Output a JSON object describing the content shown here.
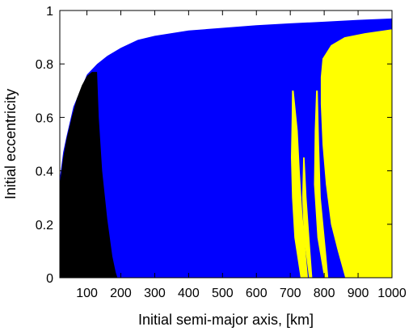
{
  "chart_data": {
    "type": "heatmap",
    "title": "",
    "xlabel": "Initial semi-major axis, [km]",
    "ylabel": "Initial eccentricity",
    "xlim": [
      20,
      1000
    ],
    "ylim": [
      0,
      1
    ],
    "x_ticks": [
      100,
      200,
      300,
      400,
      500,
      600,
      700,
      800,
      900,
      1000
    ],
    "x_tick_labels": [
      "100",
      "200",
      "300",
      "400",
      "500",
      "600",
      "700",
      "800",
      "900",
      "1000"
    ],
    "y_ticks": [
      0,
      0.2,
      0.4,
      0.6,
      0.8,
      1
    ],
    "y_tick_labels": [
      "0",
      "0.2",
      "0.4",
      "0.6",
      "0.8",
      "1"
    ],
    "grid": false,
    "legend": "none",
    "colors": {
      "background": "#ffffff",
      "black_region": "#000000",
      "blue_region": "#0000ff",
      "yellow_region": "#ffff00"
    },
    "regions": [
      {
        "color": "#0000ff",
        "boundary": [
          [
            20,
            0
          ],
          [
            20,
            0.37
          ],
          [
            30,
            0.47
          ],
          [
            40,
            0.53
          ],
          [
            60,
            0.64
          ],
          [
            80,
            0.7
          ],
          [
            100,
            0.76
          ],
          [
            130,
            0.8
          ],
          [
            160,
            0.83
          ],
          [
            200,
            0.86
          ],
          [
            250,
            0.89
          ],
          [
            300,
            0.905
          ],
          [
            400,
            0.925
          ],
          [
            500,
            0.935
          ],
          [
            600,
            0.945
          ],
          [
            700,
            0.952
          ],
          [
            800,
            0.958
          ],
          [
            900,
            0.965
          ],
          [
            1000,
            0.97
          ],
          [
            1000,
            0
          ]
        ]
      },
      {
        "color": "#000000",
        "boundary": [
          [
            20,
            0
          ],
          [
            20,
            0.35
          ],
          [
            30,
            0.45
          ],
          [
            40,
            0.52
          ],
          [
            55,
            0.6
          ],
          [
            70,
            0.67
          ],
          [
            85,
            0.72
          ],
          [
            100,
            0.755
          ],
          [
            115,
            0.77
          ],
          [
            130,
            0.77
          ],
          [
            135,
            0.6
          ],
          [
            145,
            0.4
          ],
          [
            160,
            0.22
          ],
          [
            175,
            0.08
          ],
          [
            185,
            0.02
          ],
          [
            190,
            0
          ]
        ]
      },
      {
        "color": "#ffff00",
        "boundary": [
          [
            862,
            0
          ],
          [
            840,
            0.1
          ],
          [
            820,
            0.2
          ],
          [
            805,
            0.35
          ],
          [
            795,
            0.5
          ],
          [
            790,
            0.65
          ],
          [
            790,
            0.75
          ],
          [
            795,
            0.82
          ],
          [
            820,
            0.87
          ],
          [
            860,
            0.9
          ],
          [
            920,
            0.915
          ],
          [
            1000,
            0.93
          ],
          [
            1000,
            0
          ]
        ]
      },
      {
        "color": "#ffff00",
        "boundary": [
          [
            730,
            0
          ],
          [
            712,
            0.15
          ],
          [
            705,
            0.3
          ],
          [
            702,
            0.45
          ],
          [
            704,
            0.6
          ],
          [
            705,
            0.7
          ],
          [
            710,
            0.7
          ],
          [
            722,
            0.55
          ],
          [
            728,
            0.4
          ],
          [
            735,
            0.25
          ],
          [
            745,
            0.1
          ],
          [
            752,
            0
          ]
        ]
      },
      {
        "color": "#ffff00",
        "boundary": [
          [
            800,
            0
          ],
          [
            780,
            0.15
          ],
          [
            770,
            0.35
          ],
          [
            772,
            0.55
          ],
          [
            776,
            0.7
          ],
          [
            781,
            0.7
          ],
          [
            785,
            0.5
          ],
          [
            790,
            0.3
          ],
          [
            805,
            0.1
          ],
          [
            812,
            0
          ]
        ]
      },
      {
        "color": "#ffff00",
        "boundary": [
          [
            755,
            0
          ],
          [
            740,
            0.15
          ],
          [
            735,
            0.3
          ],
          [
            738,
            0.45
          ],
          [
            742,
            0.45
          ],
          [
            748,
            0.3
          ],
          [
            758,
            0.12
          ],
          [
            765,
            0
          ]
        ]
      }
    ]
  }
}
